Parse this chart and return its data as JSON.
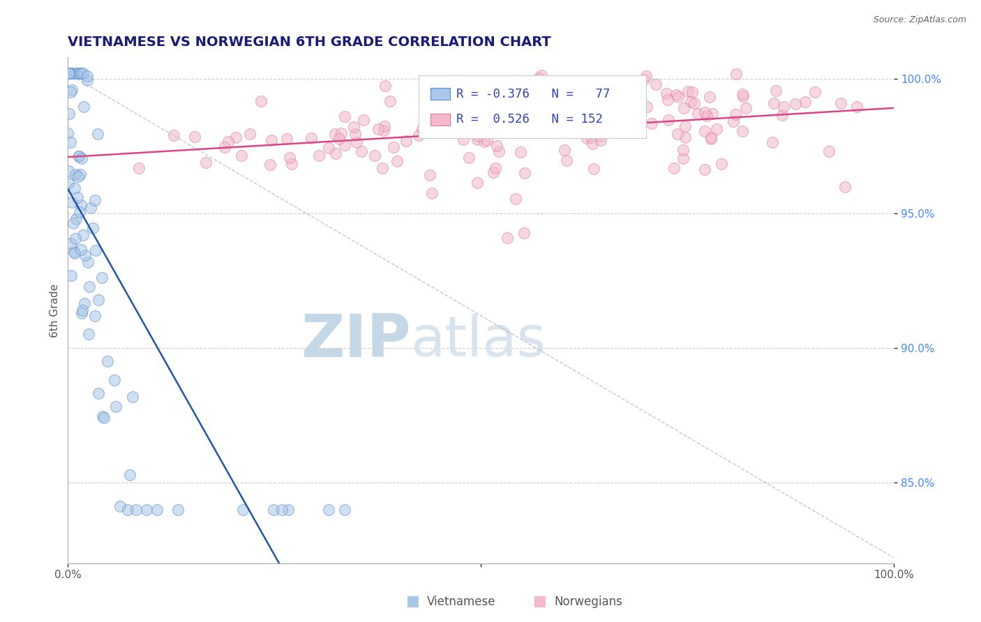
{
  "title": "VIETNAMESE VS NORWEGIAN 6TH GRADE CORRELATION CHART",
  "source": "Source: ZipAtlas.com",
  "ylabel": "6th Grade",
  "xlim": [
    0.0,
    1.0
  ],
  "ylim": [
    0.82,
    1.008
  ],
  "y_ticks_right": [
    0.85,
    0.9,
    0.95,
    1.0
  ],
  "y_tick_labels_right": [
    "85.0%",
    "90.0%",
    "95.0%",
    "100.0%"
  ],
  "legend_r1": "R = -0.376",
  "legend_n1": "N =  77",
  "legend_r2": "R =  0.526",
  "legend_n2": "N = 152",
  "viet_color": "#a8c8e8",
  "norw_color": "#f4b8c8",
  "viet_edge_color": "#5588cc",
  "norw_edge_color": "#dd7799",
  "viet_line_color": "#2255aa",
  "norw_line_color": "#dd4488",
  "background_color": "#ffffff",
  "watermark_text": "ZIP",
  "watermark_text2": "atlas",
  "watermark_color": "#dde8f0",
  "title_color": "#1a1a7a",
  "title_fontsize": 14,
  "label_color": "#555555",
  "right_label_color": "#4488ff",
  "legend_text_r_color": "#cc2255",
  "legend_text_n_color": "#3344bb",
  "seed": 12
}
